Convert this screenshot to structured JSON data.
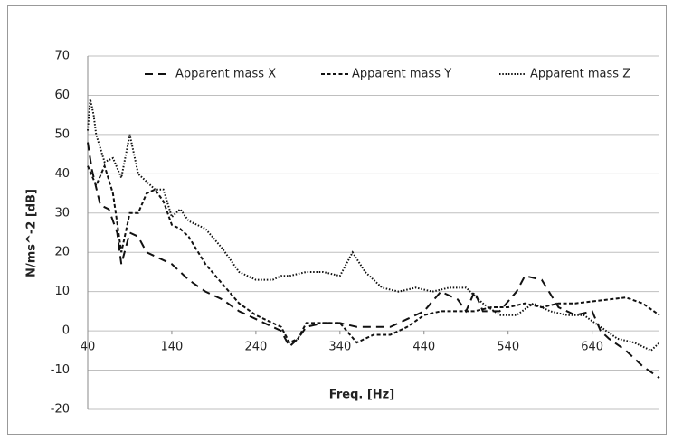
{
  "chart_data": {
    "type": "line",
    "xlabel": "Freq. [Hz]",
    "ylabel": "N/ms^-2 [dB]",
    "xlim": [
      40,
      720
    ],
    "xticks": [
      40,
      140,
      240,
      340,
      440,
      540,
      640
    ],
    "ylim": [
      -20,
      70
    ],
    "yticks": [
      -20,
      -10,
      0,
      10,
      20,
      30,
      40,
      50,
      60,
      70
    ],
    "grid": true,
    "legend": "top",
    "series": [
      {
        "name": "Apparent mass X",
        "color": "#111111",
        "linestyle": "long-dash",
        "x": [
          40,
          45,
          55,
          65,
          75,
          80,
          90,
          100,
          110,
          120,
          140,
          160,
          180,
          200,
          220,
          240,
          260,
          270,
          280,
          290,
          300,
          320,
          340,
          360,
          380,
          400,
          420,
          440,
          460,
          480,
          490,
          500,
          510,
          530,
          550,
          560,
          580,
          600,
          620,
          640,
          650,
          660,
          680,
          700,
          720
        ],
        "values": [
          48,
          41,
          32,
          31,
          25,
          17,
          25,
          24,
          20,
          19,
          17,
          13,
          10,
          8,
          5,
          3,
          1,
          0,
          -4,
          -2,
          1,
          2,
          2,
          1,
          1,
          1,
          3,
          5,
          10,
          8,
          5,
          10,
          5,
          5,
          10,
          14,
          13,
          6,
          4,
          5,
          0,
          -2,
          -5,
          -9,
          -12
        ]
      },
      {
        "name": "Apparent mass Y",
        "color": "#111111",
        "linestyle": "short-dash",
        "x": [
          40,
          50,
          60,
          70,
          80,
          90,
          100,
          110,
          120,
          130,
          140,
          150,
          160,
          180,
          200,
          220,
          240,
          260,
          270,
          280,
          290,
          300,
          320,
          340,
          360,
          380,
          400,
          420,
          440,
          460,
          480,
          500,
          520,
          540,
          560,
          580,
          600,
          620,
          640,
          660,
          680,
          700,
          720
        ],
        "values": [
          42,
          37,
          42,
          35,
          20,
          30,
          30,
          35,
          36,
          33,
          27,
          26,
          24,
          17,
          12,
          7,
          4,
          2,
          1,
          -3,
          -2,
          2,
          2,
          2,
          -3,
          -1,
          -1,
          1,
          4,
          5,
          5,
          5,
          6,
          6,
          7,
          6,
          7,
          7,
          7.5,
          8,
          8.5,
          7,
          4
        ]
      },
      {
        "name": "Apparent mass Z",
        "color": "#111111",
        "linestyle": "dotted",
        "x": [
          40,
          43,
          47,
          50,
          60,
          70,
          80,
          90,
          100,
          110,
          120,
          130,
          140,
          150,
          160,
          180,
          200,
          220,
          240,
          260,
          270,
          280,
          300,
          320,
          340,
          355,
          370,
          390,
          410,
          430,
          450,
          470,
          490,
          500,
          510,
          530,
          550,
          570,
          590,
          610,
          630,
          650,
          670,
          690,
          710,
          720
        ],
        "values": [
          51,
          59,
          55,
          50,
          43,
          44,
          39,
          50,
          40,
          38,
          36,
          36,
          29,
          31,
          28,
          26,
          21,
          15,
          13,
          13,
          14,
          14,
          15,
          15,
          14,
          20,
          15,
          11,
          10,
          11,
          10,
          11,
          11,
          9,
          7,
          4,
          4,
          7,
          5,
          4,
          4,
          1,
          -2,
          -3,
          -5,
          -3
        ]
      }
    ]
  }
}
